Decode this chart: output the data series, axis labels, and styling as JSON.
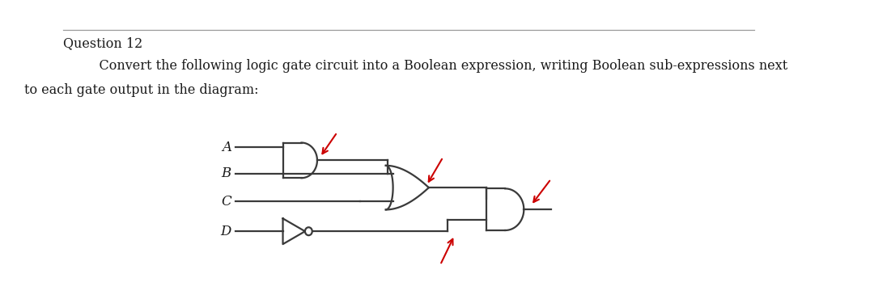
{
  "title_line": "Question 12",
  "description_line1": "    Convert the following logic gate circuit into a Boolean expression, writing Boolean sub-expressions next",
  "description_line2": "to each gate output in the diagram:",
  "bg_color": "#ffffff",
  "line_color": "#3a3a3a",
  "arrow_color": "#cc0000",
  "label_color": "#1a1a1a",
  "text_font_size": 11.5,
  "title_font_size": 11.5,
  "header_line_color": "#999999",
  "inputs": [
    "A",
    "B",
    "C",
    "D"
  ]
}
